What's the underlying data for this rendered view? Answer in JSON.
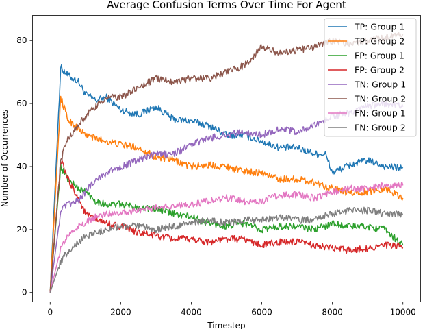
{
  "chart_data": {
    "type": "line",
    "title": "Average Confusion Terms Over Time For Agent",
    "xlabel": "Timestep",
    "ylabel": "Number of Occurrences",
    "xlim": [
      -500,
      10500
    ],
    "ylim": [
      -3,
      88
    ],
    "xticks": [
      0,
      2000,
      4000,
      6000,
      8000,
      10000
    ],
    "yticks": [
      0,
      20,
      40,
      60,
      80
    ],
    "grid": false,
    "legend_position": "top-right",
    "series": [
      {
        "name": "TP: Group 1",
        "color": "#1f77b4",
        "points": [
          [
            0,
            0
          ],
          [
            300,
            71.5
          ],
          [
            500,
            69
          ],
          [
            800,
            67
          ],
          [
            1000,
            63
          ],
          [
            1300,
            61
          ],
          [
            1600,
            62
          ],
          [
            2000,
            58
          ],
          [
            2500,
            56.5
          ],
          [
            3000,
            59
          ],
          [
            3500,
            55
          ],
          [
            4000,
            54.5
          ],
          [
            4500,
            53
          ],
          [
            5000,
            50
          ],
          [
            5500,
            50
          ],
          [
            6000,
            48
          ],
          [
            6500,
            46
          ],
          [
            7000,
            46
          ],
          [
            7500,
            44
          ],
          [
            7800,
            44
          ],
          [
            8000,
            38
          ],
          [
            8500,
            40.5
          ],
          [
            9000,
            42
          ],
          [
            9500,
            40
          ],
          [
            10000,
            39.5
          ]
        ]
      },
      {
        "name": "TP: Group 2",
        "color": "#ff7f0e",
        "points": [
          [
            0,
            0
          ],
          [
            300,
            62
          ],
          [
            500,
            55
          ],
          [
            800,
            52
          ],
          [
            1000,
            50
          ],
          [
            1300,
            49
          ],
          [
            1600,
            48
          ],
          [
            2000,
            47
          ],
          [
            2500,
            46
          ],
          [
            3000,
            43
          ],
          [
            3500,
            42
          ],
          [
            4000,
            40
          ],
          [
            4500,
            40.5
          ],
          [
            5000,
            40
          ],
          [
            5500,
            38.5
          ],
          [
            6000,
            38
          ],
          [
            6500,
            36
          ],
          [
            7000,
            36
          ],
          [
            7500,
            35
          ],
          [
            8000,
            33
          ],
          [
            8500,
            31.5
          ],
          [
            9000,
            32
          ],
          [
            9500,
            33
          ],
          [
            10000,
            30
          ]
        ]
      },
      {
        "name": "FP: Group 1",
        "color": "#2ca02c",
        "points": [
          [
            0,
            0
          ],
          [
            300,
            40
          ],
          [
            500,
            36
          ],
          [
            800,
            33
          ],
          [
            1000,
            32
          ],
          [
            1300,
            29
          ],
          [
            1600,
            28
          ],
          [
            2000,
            28
          ],
          [
            2500,
            27
          ],
          [
            3000,
            26.5
          ],
          [
            3500,
            25
          ],
          [
            4000,
            24
          ],
          [
            4500,
            22
          ],
          [
            5000,
            21
          ],
          [
            5500,
            22
          ],
          [
            6000,
            20
          ],
          [
            6500,
            21
          ],
          [
            7000,
            21
          ],
          [
            7500,
            20
          ],
          [
            8000,
            22
          ],
          [
            8500,
            21
          ],
          [
            9000,
            21
          ],
          [
            9500,
            20
          ],
          [
            10000,
            15
          ]
        ]
      },
      {
        "name": "FP: Group 2",
        "color": "#d62728",
        "points": [
          [
            0,
            0
          ],
          [
            300,
            42
          ],
          [
            500,
            36
          ],
          [
            800,
            30
          ],
          [
            1000,
            25
          ],
          [
            1300,
            23
          ],
          [
            1600,
            22
          ],
          [
            2000,
            21
          ],
          [
            2500,
            19
          ],
          [
            3000,
            18
          ],
          [
            3500,
            17
          ],
          [
            4000,
            17
          ],
          [
            4500,
            16
          ],
          [
            5000,
            17
          ],
          [
            5500,
            17
          ],
          [
            6000,
            15
          ],
          [
            6500,
            16
          ],
          [
            7000,
            16
          ],
          [
            7500,
            15
          ],
          [
            8000,
            14
          ],
          [
            8500,
            13.5
          ],
          [
            9000,
            14
          ],
          [
            9500,
            15
          ],
          [
            10000,
            14.5
          ]
        ]
      },
      {
        "name": "TN: Group 1",
        "color": "#9467bd",
        "points": [
          [
            0,
            0
          ],
          [
            300,
            26
          ],
          [
            500,
            28
          ],
          [
            800,
            29
          ],
          [
            1000,
            32
          ],
          [
            1300,
            36
          ],
          [
            1600,
            38
          ],
          [
            2000,
            40
          ],
          [
            2500,
            42
          ],
          [
            3000,
            44
          ],
          [
            3500,
            44
          ],
          [
            4000,
            47
          ],
          [
            4500,
            49
          ],
          [
            5000,
            50
          ],
          [
            5500,
            51
          ],
          [
            6000,
            50
          ],
          [
            6500,
            52
          ],
          [
            7000,
            51
          ],
          [
            7500,
            53
          ],
          [
            8000,
            56
          ],
          [
            8500,
            57
          ],
          [
            9000,
            59
          ],
          [
            9500,
            60
          ],
          [
            10000,
            59
          ]
        ]
      },
      {
        "name": "TN: Group 2",
        "color": "#8c564b",
        "points": [
          [
            0,
            0
          ],
          [
            300,
            42
          ],
          [
            500,
            49
          ],
          [
            800,
            53
          ],
          [
            1000,
            56
          ],
          [
            1300,
            59
          ],
          [
            1600,
            62
          ],
          [
            2000,
            62
          ],
          [
            2500,
            65
          ],
          [
            3000,
            68
          ],
          [
            3500,
            67
          ],
          [
            4000,
            68
          ],
          [
            4500,
            68
          ],
          [
            5000,
            70
          ],
          [
            5500,
            72
          ],
          [
            6000,
            78
          ],
          [
            6500,
            76
          ],
          [
            7000,
            77
          ],
          [
            7500,
            78
          ],
          [
            8000,
            80
          ],
          [
            8500,
            79
          ],
          [
            9000,
            80
          ],
          [
            9500,
            81
          ],
          [
            10000,
            82
          ]
        ]
      },
      {
        "name": "FN: Group 1",
        "color": "#e377c2",
        "points": [
          [
            0,
            0
          ],
          [
            300,
            14
          ],
          [
            500,
            18
          ],
          [
            800,
            21
          ],
          [
            1000,
            22
          ],
          [
            1300,
            24
          ],
          [
            1600,
            25
          ],
          [
            2000,
            25.5
          ],
          [
            2500,
            26
          ],
          [
            3000,
            27
          ],
          [
            3500,
            27.5
          ],
          [
            4000,
            28
          ],
          [
            4500,
            29
          ],
          [
            5000,
            30
          ],
          [
            5500,
            29
          ],
          [
            6000,
            29
          ],
          [
            6500,
            31
          ],
          [
            7000,
            31
          ],
          [
            7500,
            30
          ],
          [
            8000,
            32
          ],
          [
            8500,
            33
          ],
          [
            9000,
            33
          ],
          [
            9500,
            34
          ],
          [
            10000,
            34
          ]
        ]
      },
      {
        "name": "FN: Group 2",
        "color": "#7f7f7f",
        "points": [
          [
            0,
            0
          ],
          [
            300,
            10
          ],
          [
            500,
            13
          ],
          [
            800,
            16
          ],
          [
            1000,
            18
          ],
          [
            1300,
            19
          ],
          [
            1600,
            20
          ],
          [
            2000,
            21
          ],
          [
            2500,
            21
          ],
          [
            3000,
            20
          ],
          [
            3500,
            21
          ],
          [
            4000,
            22
          ],
          [
            4500,
            23
          ],
          [
            5000,
            22
          ],
          [
            5500,
            23
          ],
          [
            6000,
            23
          ],
          [
            6500,
            24
          ],
          [
            7000,
            23
          ],
          [
            7500,
            23
          ],
          [
            8000,
            25
          ],
          [
            8500,
            26
          ],
          [
            9000,
            26
          ],
          [
            9500,
            25
          ],
          [
            10000,
            25
          ]
        ]
      }
    ]
  }
}
